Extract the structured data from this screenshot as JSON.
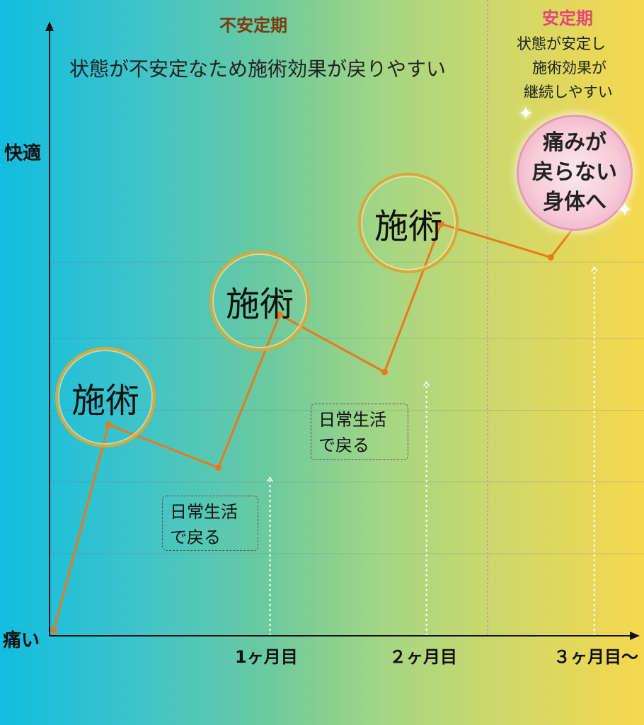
{
  "chart_data": {
    "type": "line",
    "title": "",
    "y_axis": {
      "top_label": "快適",
      "bottom_label": "痛い"
    },
    "x_ticks": [
      "1ヶ月目",
      "２ヶ月目",
      "３ヶ月目〜"
    ],
    "series": [
      {
        "values": [
          {
            "x": 0,
            "y": 0
          },
          {
            "x": 0.34,
            "y": 0.43
          },
          {
            "x": 1.02,
            "y": 0.34
          },
          {
            "x": 1.4,
            "y": 0.66
          },
          {
            "x": 2.05,
            "y": 0.54
          },
          {
            "x": 2.4,
            "y": 0.85
          },
          {
            "x": 3.08,
            "y": 0.78
          },
          {
            "x": 3.4,
            "y": 0.92
          }
        ]
      }
    ],
    "annotations": {
      "treatment_label": "施術",
      "daily_life_note_line1": "日常生活",
      "daily_life_note_line2": "で戻る"
    }
  },
  "sections": {
    "unstable": {
      "label": "不安定期",
      "desc": "状態が不安定なため施術効果が戻りやすい"
    },
    "stable": {
      "label": "安定期",
      "desc_line1": "状態が安定し",
      "desc_line2": "施術効果が",
      "desc_line3": "継続しやすい"
    }
  },
  "goal": {
    "line1": "痛みが",
    "line2": "戻らない",
    "line3": "身体へ"
  },
  "colors": {
    "line": "#e9791b",
    "section_unstable": "#7a3b12",
    "section_stable": "#e2457a",
    "axis": "#111111"
  }
}
